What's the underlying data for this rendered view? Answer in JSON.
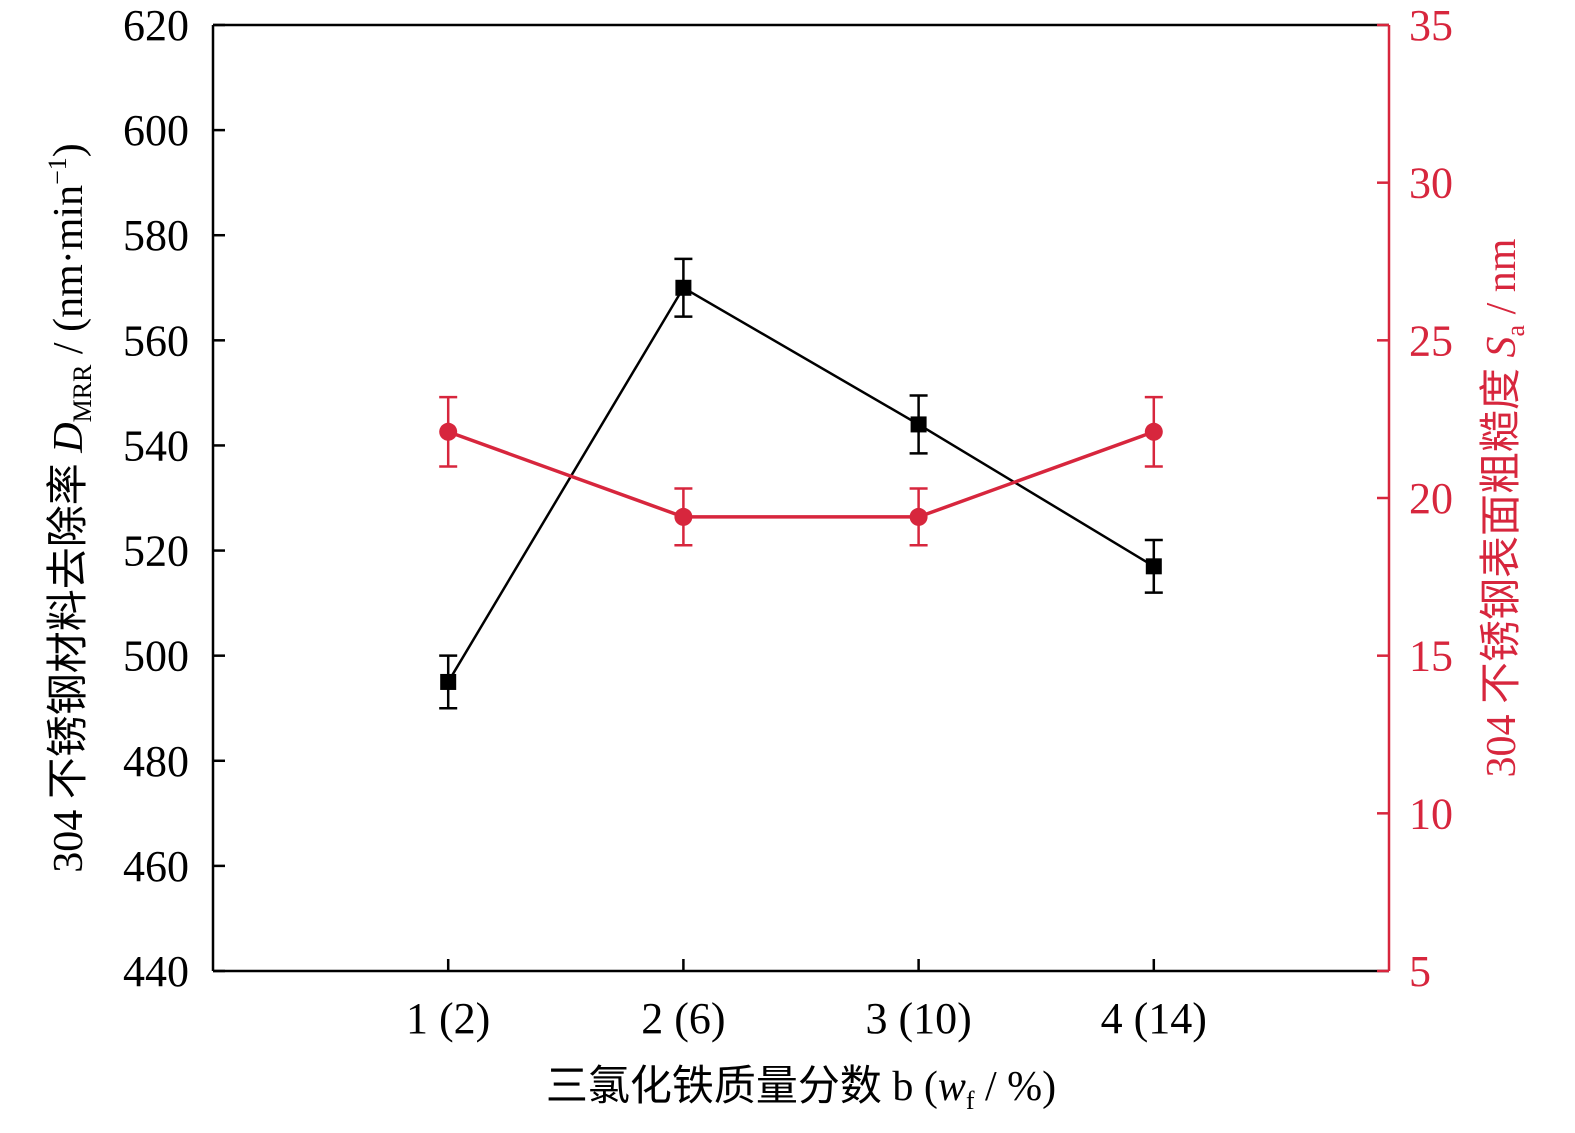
{
  "chart_data": {
    "type": "line",
    "title": "",
    "categories": [
      "1 (2)",
      "2 (6)",
      "3 (10)",
      "4 (14)"
    ],
    "xlabel": {
      "text": "三氯化铁质量分数 b (",
      "var": "w",
      "sub": "f",
      "suffix": " / %)"
    },
    "ylabel_left": {
      "prefix": "304 不锈钢材料去除率 ",
      "var": "D",
      "sub": "MRR",
      "suffix": " / (nm·min",
      "sup": "−1",
      "end": ")"
    },
    "ylabel_right": {
      "prefix": "304 不锈钢表面粗糙度 ",
      "var": "S",
      "sub": "a",
      "suffix": " / nm"
    },
    "ylim_left": [
      440,
      620
    ],
    "yticks_left": [
      440,
      460,
      480,
      500,
      520,
      540,
      560,
      580,
      600,
      620
    ],
    "ylim_right": [
      5,
      35
    ],
    "yticks_right": [
      5,
      10,
      15,
      20,
      25,
      30,
      35
    ],
    "grid": false,
    "series": [
      {
        "axis": "left",
        "marker": "square",
        "color": "#000000",
        "values": [
          495,
          570,
          544,
          517
        ],
        "errors": [
          5,
          5.5,
          5.5,
          5
        ]
      },
      {
        "axis": "right",
        "marker": "circle",
        "color": "#d7263d",
        "values": [
          22.1,
          19.4,
          19.4,
          22.1
        ],
        "errors": [
          1.1,
          0.9,
          0.9,
          1.1
        ]
      }
    ]
  }
}
